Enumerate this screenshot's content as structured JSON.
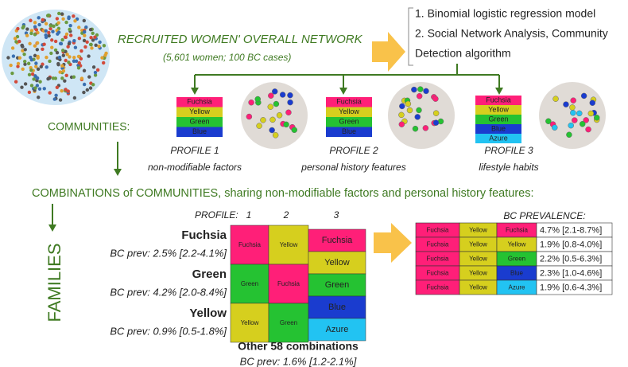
{
  "network": {
    "title": "RECRUITED WOMEN' OVERALL NETWORK",
    "subtitle": "(5,601 women; 100 BC cases)"
  },
  "methods": [
    "1. Binomial logistic regression model",
    "2. Social Network Analysis, Community",
    "Detection algorithm"
  ],
  "communities_label": "COMMUNITIES:",
  "palette": {
    "Fuchsia": "#ff1f78",
    "Yellow": "#d6cf1e",
    "Green": "#25c232",
    "Blue": "#1a3ccf",
    "Azure": "#22c3f2"
  },
  "profiles": [
    {
      "communities": [
        "Fuchsia",
        "Yellow",
        "Green",
        "Blue"
      ],
      "title": "PROFILE 1",
      "description": "non-modifiable factors"
    },
    {
      "communities": [
        "Fuchsia",
        "Yellow",
        "Green",
        "Blue"
      ],
      "title": "PROFILE 2",
      "description": "personal history features"
    },
    {
      "communities": [
        "Fuchsia",
        "Yellow",
        "Green",
        "Blue",
        "Azure"
      ],
      "title": "PROFILE 3",
      "description": "lifestyle habits"
    }
  ],
  "combinations_title": "COMBINATIONS of COMMUNITIES, sharing  non-modifiable factors and personal history features:",
  "families_label": "FAMILIES",
  "family_grid": {
    "profile_label": "PROFILE:",
    "columns": [
      "1",
      "2",
      "3"
    ],
    "families": [
      {
        "name": "Fuchsia",
        "prevalence": "BC prev: 2.5% [2.2-4.1%]",
        "cells": [
          "Fuchsia",
          "Yellow"
        ]
      },
      {
        "name": "Green",
        "prevalence": "BC prev: 4.2% [2.0-8.4%]",
        "cells": [
          "Green",
          "Fuchsia"
        ]
      },
      {
        "name": "Yellow",
        "prevalence": "BC prev: 0.9% [0.5-1.8%]",
        "cells": [
          "Yellow",
          "Green"
        ]
      }
    ],
    "profile3": [
      "Fuchsia",
      "Yellow",
      "Green",
      "Blue",
      "Azure"
    ],
    "other": {
      "label": "Other 58 combinations",
      "prevalence": "BC prev: 1.6% [1.2-2.1%]"
    }
  },
  "bc_prevalence": {
    "title": "BC PREVALENCE:",
    "rows": [
      [
        "Fuchsia",
        "Yellow",
        "Fuchsia",
        "4.7% [2.1-8.7%]"
      ],
      [
        "Fuchsia",
        "Yellow",
        "Yellow",
        "1.9% [0.8-4.0%]"
      ],
      [
        "Fuchsia",
        "Yellow",
        "Green",
        "2.2% [0.5-6.3%]"
      ],
      [
        "Fuchsia",
        "Yellow",
        "Blue",
        "2.3% [1.0-4.6%]"
      ],
      [
        "Fuchsia",
        "Yellow",
        "Azure",
        "1.9% [0.6-4.3%]"
      ]
    ]
  }
}
